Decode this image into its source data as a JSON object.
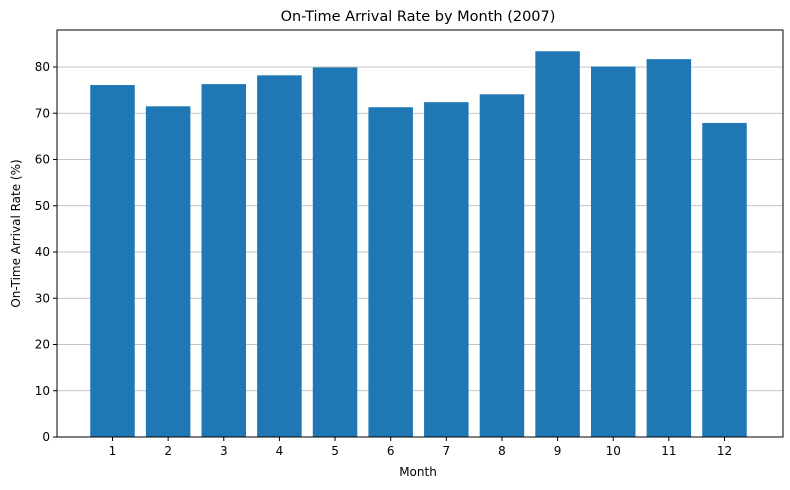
{
  "chart_data": {
    "type": "bar",
    "title": "On-Time Arrival Rate by Month (2007)",
    "xlabel": "Month",
    "ylabel": "On-Time Arrival Rate (%)",
    "categories": [
      "1",
      "2",
      "3",
      "4",
      "5",
      "6",
      "7",
      "8",
      "9",
      "10",
      "11",
      "12"
    ],
    "values": [
      76.1,
      71.5,
      76.3,
      78.2,
      79.9,
      71.3,
      72.4,
      74.1,
      83.4,
      80.1,
      81.7,
      67.9
    ],
    "ylim": [
      0,
      88
    ],
    "yticks": [
      "0",
      "10",
      "20",
      "30",
      "40",
      "50",
      "60",
      "70",
      "80"
    ],
    "grid": "y-axis on",
    "bar_color": "#1f77b4"
  }
}
